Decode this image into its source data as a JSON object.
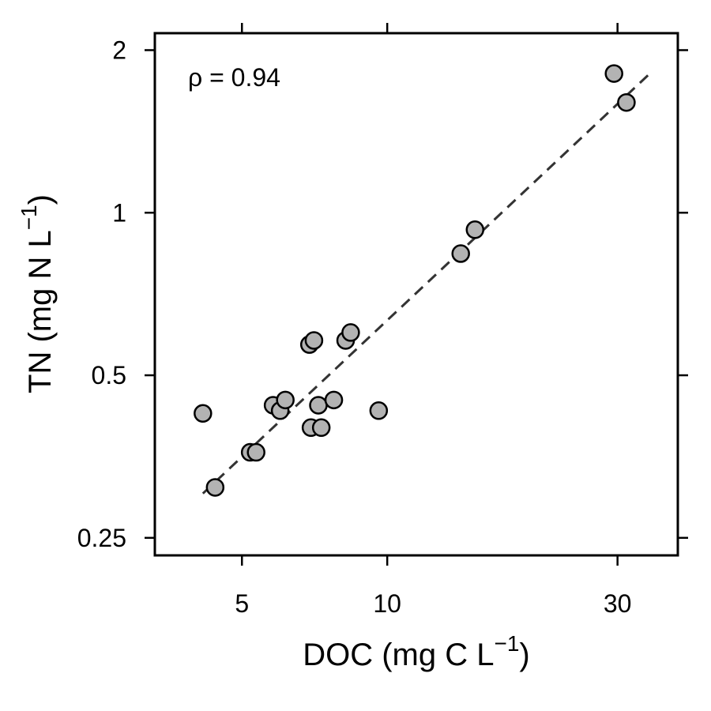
{
  "chart_data": {
    "type": "scatter",
    "title": "",
    "annotation": "ρ = 0.94",
    "xlabel": {
      "text": "DOC (mg C L",
      "sup": "−1",
      "suffix": ")"
    },
    "ylabel": {
      "text": "TN (mg N L",
      "sup": "−1",
      "suffix": ")"
    },
    "x_scale": "log",
    "y_scale": "log",
    "xlim": [
      3.3,
      40
    ],
    "ylim": [
      0.232,
      2.15
    ],
    "x_ticks": [
      5,
      10,
      30
    ],
    "x_tick_labels": [
      "5",
      "10",
      "30"
    ],
    "y_ticks": [
      0.25,
      0.5,
      1,
      2
    ],
    "y_tick_labels": [
      "0.25",
      "0.5",
      "1",
      "2"
    ],
    "grid": false,
    "points": [
      {
        "x": 4.15,
        "y": 0.425
      },
      {
        "x": 4.4,
        "y": 0.31
      },
      {
        "x": 5.2,
        "y": 0.36
      },
      {
        "x": 5.35,
        "y": 0.36
      },
      {
        "x": 5.8,
        "y": 0.44
      },
      {
        "x": 6.0,
        "y": 0.43
      },
      {
        "x": 6.15,
        "y": 0.45
      },
      {
        "x": 6.9,
        "y": 0.57
      },
      {
        "x": 7.05,
        "y": 0.58
      },
      {
        "x": 6.95,
        "y": 0.4
      },
      {
        "x": 7.3,
        "y": 0.4
      },
      {
        "x": 7.2,
        "y": 0.44
      },
      {
        "x": 7.75,
        "y": 0.45
      },
      {
        "x": 8.2,
        "y": 0.58
      },
      {
        "x": 8.4,
        "y": 0.6
      },
      {
        "x": 9.6,
        "y": 0.43
      },
      {
        "x": 14.2,
        "y": 0.84
      },
      {
        "x": 15.2,
        "y": 0.93
      },
      {
        "x": 29.5,
        "y": 1.81
      },
      {
        "x": 31.3,
        "y": 1.6
      }
    ],
    "fit_line": {
      "x": [
        4.15,
        35.0
      ],
      "y": [
        0.302,
        1.81
      ],
      "style": "dashed"
    },
    "colors": {
      "point_fill": "#b3b3b3",
      "point_stroke": "#000000",
      "line": "#333333"
    }
  }
}
